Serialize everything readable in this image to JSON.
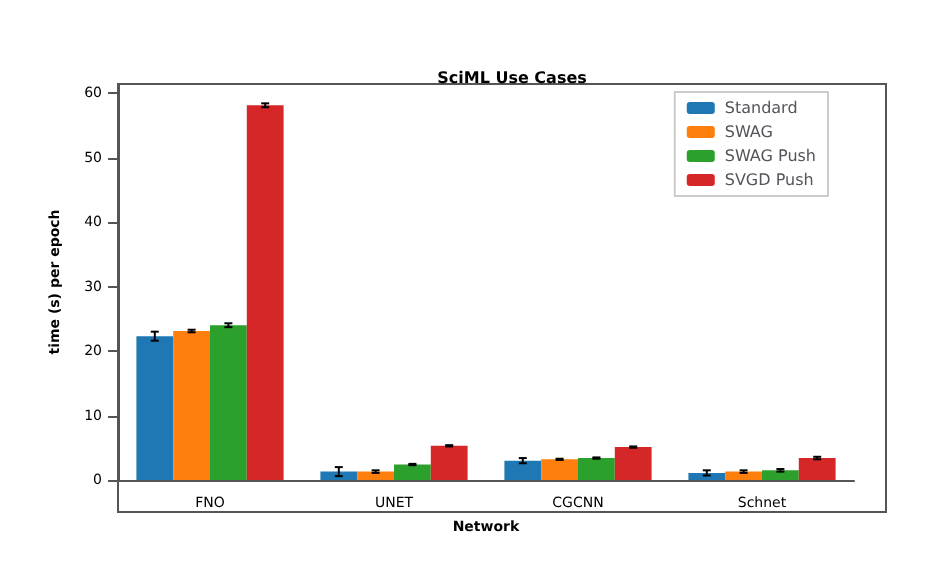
{
  "chart_data": {
    "type": "bar",
    "title": "SciML Use Cases",
    "xlabel": "Network",
    "ylabel": "time (s) per epoch",
    "categories": [
      "FNO",
      "UNET",
      "CGCNN",
      "Schnet"
    ],
    "series": [
      {
        "name": "Standard",
        "color": "#1f77b4",
        "values": [
          22.3,
          1.3,
          3.0,
          1.1
        ],
        "errors": [
          0.7,
          0.7,
          0.4,
          0.4
        ]
      },
      {
        "name": "SWAG",
        "color": "#ff7f0e",
        "values": [
          23.1,
          1.3,
          3.2,
          1.3
        ],
        "errors": [
          0.2,
          0.2,
          0.1,
          0.2
        ]
      },
      {
        "name": "SWAG Push",
        "color": "#2ca02c",
        "values": [
          24.0,
          2.4,
          3.4,
          1.5
        ],
        "errors": [
          0.3,
          0.1,
          0.1,
          0.2
        ]
      },
      {
        "name": "SVGD Push",
        "color": "#d62728",
        "values": [
          58.1,
          5.3,
          5.1,
          3.4
        ],
        "errors": [
          0.3,
          0.1,
          0.1,
          0.2
        ]
      }
    ],
    "ylim": [
      0,
      61.4
    ],
    "yticks": [
      0,
      10,
      20,
      30,
      40,
      50,
      60
    ],
    "grid": false,
    "legend": "top right"
  }
}
